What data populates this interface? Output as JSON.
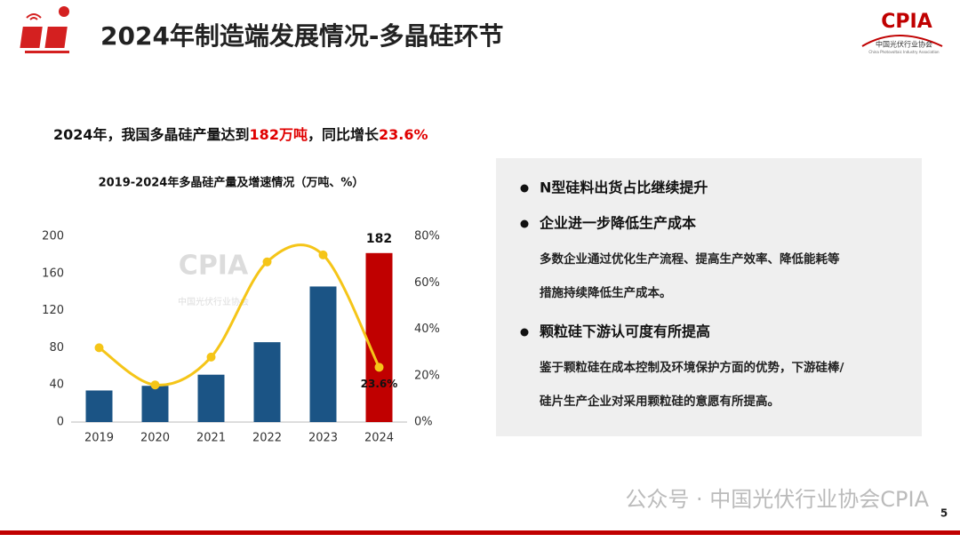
{
  "header": {
    "title": "2024年制造端发展情况-多晶硅环节"
  },
  "logo": {
    "name": "CPIA",
    "org": "中国光伏行业协会",
    "org_en": "China Photovoltaic Industry Association"
  },
  "headline": [
    "2024年，我国多晶硅产量达到",
    "182万吨",
    "，同比增长",
    "23.6%"
  ],
  "chart_data": {
    "type": "bar",
    "title": "2019-2024年多晶硅产量及增速情况（万吨、%）",
    "categories": [
      "2019",
      "2020",
      "2021",
      "2022",
      "2023",
      "2024"
    ],
    "series": [
      {
        "type": "bar",
        "colors": [
          "#1b5485",
          "#1b5485",
          "#1b5485",
          "#1b5485",
          "#1b5485",
          "#c00000"
        ],
        "values": [
          34,
          39,
          51,
          86,
          146,
          182
        ],
        "value_labels": [
          null,
          null,
          null,
          null,
          null,
          "182"
        ]
      },
      {
        "type": "line",
        "axis": "y2",
        "color": "#f5c518",
        "values": [
          32,
          16,
          28,
          69,
          72,
          23.6
        ],
        "value_labels": [
          null,
          null,
          null,
          null,
          null,
          "23.6%"
        ]
      }
    ],
    "ylim": [
      0,
      200
    ],
    "yticks": [
      0,
      40,
      80,
      120,
      160,
      200
    ],
    "y2lim": [
      0,
      80
    ],
    "y2ticks": [
      {
        "value": 0,
        "label": "0%"
      },
      {
        "value": 20,
        "label": "20%"
      },
      {
        "value": 40,
        "label": "40%"
      },
      {
        "value": 60,
        "label": "60%"
      },
      {
        "value": 80,
        "label": "80%"
      }
    ],
    "grid": false
  },
  "panel": {
    "bullets": [
      {
        "title": "N型硅料出货占比继续提升",
        "lines": []
      },
      {
        "title": "企业进一步降低生产成本",
        "lines": [
          "多数企业通过优化生产流程、提高生产效率、降低能耗等",
          "措施持续降低生产成本。"
        ]
      },
      {
        "title": "颗粒硅下游认可度有所提高",
        "lines": [
          "鉴于颗粒硅在成本控制及环境保护方面的优势，下游硅棒/",
          "硅片生产企业对采用颗粒硅的意愿有所提高。"
        ]
      }
    ]
  },
  "footer": {
    "watermark": "公众号 · 中国光伏行业协会CPIA",
    "page": "5"
  }
}
